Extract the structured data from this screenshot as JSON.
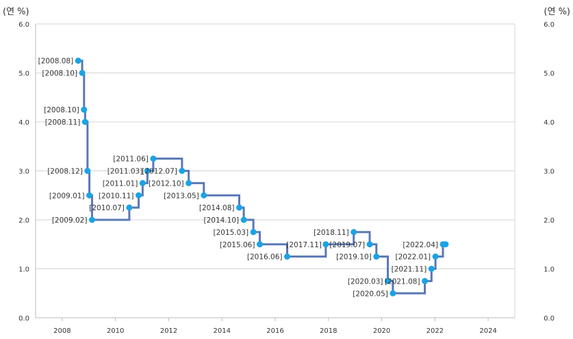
{
  "chart_data": {
    "type": "line",
    "step": true,
    "unit_left": "(연 %)",
    "unit_right": "(연 %)",
    "ylim": [
      0,
      6
    ],
    "yticks": [
      "0.0",
      "1.0",
      "2.0",
      "3.0",
      "4.0",
      "5.0",
      "6.0"
    ],
    "xlim": [
      2007,
      2025
    ],
    "xticks": [
      "2008",
      "2010",
      "2012",
      "2014",
      "2016",
      "2018",
      "2020",
      "2022",
      "2024"
    ],
    "grid": true,
    "colors": {
      "line": "#5a78b4",
      "marker": "#1aa3e6",
      "grid": "#d4d4d4",
      "axis": "#bbbbbb"
    },
    "series": [
      {
        "points": [
          {
            "label": "[2008.08]",
            "x": 2008.6,
            "y": 5.25,
            "anchor": "left"
          },
          {
            "label": "[2008.10]",
            "x": 2008.75,
            "y": 5.0,
            "anchor": "left"
          },
          {
            "label": "[2008.10]",
            "x": 2008.82,
            "y": 4.25,
            "anchor": "left"
          },
          {
            "label": "[2008.11]",
            "x": 2008.86,
            "y": 4.0,
            "anchor": "left"
          },
          {
            "label": "[2008.12]",
            "x": 2008.95,
            "y": 3.0,
            "anchor": "left"
          },
          {
            "label": "[2009.01]",
            "x": 2009.02,
            "y": 2.5,
            "anchor": "left"
          },
          {
            "label": "[2009.02]",
            "x": 2009.12,
            "y": 2.0,
            "anchor": "left"
          },
          {
            "label": "[2010.07]",
            "x": 2010.52,
            "y": 2.25,
            "anchor": "left"
          },
          {
            "label": "[2010.11]",
            "x": 2010.87,
            "y": 2.5,
            "anchor": "left"
          },
          {
            "label": "[2011.01]",
            "x": 2011.02,
            "y": 2.75,
            "anchor": "left"
          },
          {
            "label": "[2011.03]",
            "x": 2011.2,
            "y": 3.0,
            "anchor": "left"
          },
          {
            "label": "[2011.06]",
            "x": 2011.42,
            "y": 3.25,
            "anchor": "left"
          },
          {
            "label": "[2012.07]",
            "x": 2012.5,
            "y": 3.0,
            "anchor": "left"
          },
          {
            "label": "[2012.10]",
            "x": 2012.75,
            "y": 2.75,
            "anchor": "left"
          },
          {
            "label": "[2013.05]",
            "x": 2013.32,
            "y": 2.5,
            "anchor": "left"
          },
          {
            "label": "[2014.08]",
            "x": 2014.65,
            "y": 2.25,
            "anchor": "left"
          },
          {
            "label": "[2014.10]",
            "x": 2014.82,
            "y": 2.0,
            "anchor": "left"
          },
          {
            "label": "[2015.03]",
            "x": 2015.18,
            "y": 1.75,
            "anchor": "left"
          },
          {
            "label": "[2015.06]",
            "x": 2015.42,
            "y": 1.5,
            "anchor": "left"
          },
          {
            "label": "[2016.06]",
            "x": 2016.45,
            "y": 1.25,
            "anchor": "left"
          },
          {
            "label": "[2017.11]",
            "x": 2017.9,
            "y": 1.5,
            "anchor": "right"
          },
          {
            "label": "[2018.11]",
            "x": 2018.95,
            "y": 1.75,
            "anchor": "left"
          },
          {
            "label": "[2019.07]",
            "x": 2019.55,
            "y": 1.5,
            "anchor": "left"
          },
          {
            "label": "[2019.10]",
            "x": 2019.8,
            "y": 1.25,
            "anchor": "left"
          },
          {
            "label": "[2020.03]",
            "x": 2020.23,
            "y": 0.75,
            "anchor": "left"
          },
          {
            "label": "[2020.05]",
            "x": 2020.42,
            "y": 0.5,
            "anchor": "left"
          },
          {
            "label": "[2021.08]",
            "x": 2021.62,
            "y": 0.75,
            "anchor": "left"
          },
          {
            "label": "[2021.11]",
            "x": 2021.87,
            "y": 1.0,
            "anchor": "left"
          },
          {
            "label": "[2022.01]",
            "x": 2022.02,
            "y": 1.25,
            "anchor": "left"
          },
          {
            "label": "[2022.04]",
            "x": 2022.3,
            "y": 1.5,
            "anchor": "left"
          },
          {
            "label": "",
            "x": 2022.4,
            "y": 1.5,
            "anchor": "left"
          }
        ]
      }
    ]
  }
}
